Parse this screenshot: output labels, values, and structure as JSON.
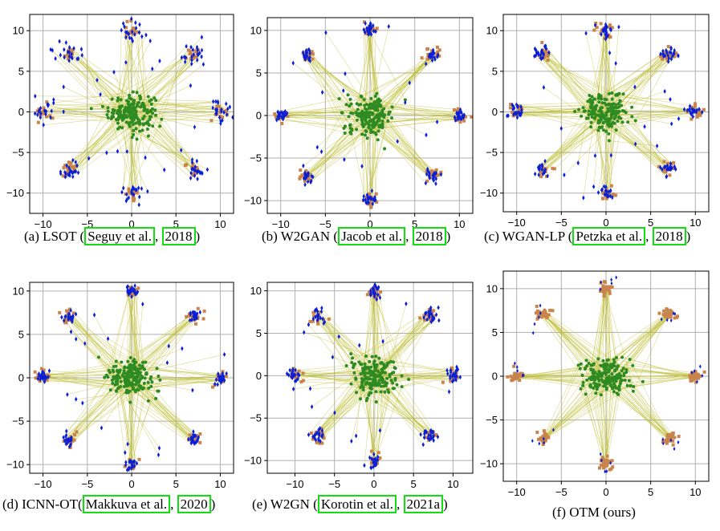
{
  "chart_data": [
    {
      "type": "scatter",
      "id": "a",
      "caption_prefix": "(a) LSOT (",
      "cite_author": "Seguy et al.",
      "cite_year": "2018",
      "caption_suffix": ")",
      "xlim": [
        -11.5,
        11.5
      ],
      "ylim": [
        -12.5,
        12
      ],
      "xticks": [
        -10,
        -5,
        0,
        5,
        10
      ],
      "yticks": [
        -10,
        -5,
        0,
        5,
        10
      ],
      "grid": true,
      "spread": 0.7,
      "scatter_blue": true,
      "scatter_orange": false
    },
    {
      "type": "scatter",
      "id": "b",
      "caption_prefix": "(b) W2GAN (",
      "cite_author": "Jacob et al.",
      "cite_year": "2018",
      "caption_suffix": ")",
      "xlim": [
        -11.5,
        11.5
      ],
      "ylim": [
        -11.5,
        11.5
      ],
      "xticks": [
        -10,
        -5,
        0,
        5,
        10
      ],
      "yticks": [
        -10,
        -5,
        0,
        5,
        10
      ],
      "grid": true,
      "spread": 0.35,
      "scatter_blue": true,
      "scatter_orange": false
    },
    {
      "type": "scatter",
      "id": "c",
      "caption_prefix": "(c) WGAN-LP (",
      "cite_author": "Petzka et al.",
      "cite_year": "2018",
      "caption_suffix": ")",
      "xlim": [
        -11.5,
        11.5
      ],
      "ylim": [
        -12.3,
        12
      ],
      "xticks": [
        -10,
        -5,
        0,
        5,
        10
      ],
      "yticks": [
        -10,
        -5,
        0,
        5,
        10
      ],
      "grid": true,
      "spread": 0.45,
      "scatter_blue": true,
      "scatter_orange": false
    },
    {
      "type": "scatter",
      "id": "d",
      "caption_prefix": "(d) ICNN-OT(",
      "cite_author": "Makkuva et al.",
      "cite_year": "2020",
      "caption_suffix": ")",
      "xlim": [
        -11.5,
        11.5
      ],
      "ylim": [
        -11,
        11
      ],
      "xticks": [
        -10,
        -5,
        0,
        5,
        10
      ],
      "yticks": [
        -10,
        -5,
        0,
        5,
        10
      ],
      "grid": true,
      "spread": 0.35,
      "scatter_blue": true,
      "scatter_orange": false
    },
    {
      "type": "scatter",
      "id": "e",
      "caption_prefix": "(e) W2GN (",
      "cite_author": "Korotin et al.",
      "cite_year": "2021a",
      "caption_suffix": ")",
      "xlim": [
        -13.5,
        12.5
      ],
      "ylim": [
        -11.5,
        11
      ],
      "xticks": [
        -10,
        -5,
        0,
        5,
        10
      ],
      "yticks": [
        -10,
        -5,
        0,
        5,
        10
      ],
      "grid": true,
      "spread": 0.45,
      "scatter_blue": true,
      "scatter_orange": false
    },
    {
      "type": "scatter",
      "id": "f",
      "caption_prefix": "(f) OTM (ours)",
      "cite_author": "",
      "cite_year": "",
      "caption_suffix": "",
      "xlim": [
        -11.5,
        11.5
      ],
      "ylim": [
        -12,
        12
      ],
      "xticks": [
        -10,
        -5,
        0,
        5,
        10
      ],
      "yticks": [
        -10,
        -5,
        0,
        5,
        10
      ],
      "grid": true,
      "spread": 0.2,
      "scatter_blue": false,
      "scatter_orange": true
    }
  ],
  "series_colors": {
    "source": "#2e8b22",
    "target": "#c8844a",
    "mapped": "#0a1fd6",
    "lines": "#bcbc2e",
    "grid": "#b0b0b0",
    "cite_box": "#11dd11"
  },
  "target_centers": [
    [
      10,
      0
    ],
    [
      7.07,
      7.07
    ],
    [
      0,
      10
    ],
    [
      -7.07,
      7.07
    ],
    [
      -10,
      0
    ],
    [
      -7.07,
      -7.07
    ],
    [
      0,
      -10
    ],
    [
      7.07,
      -7.07
    ]
  ]
}
